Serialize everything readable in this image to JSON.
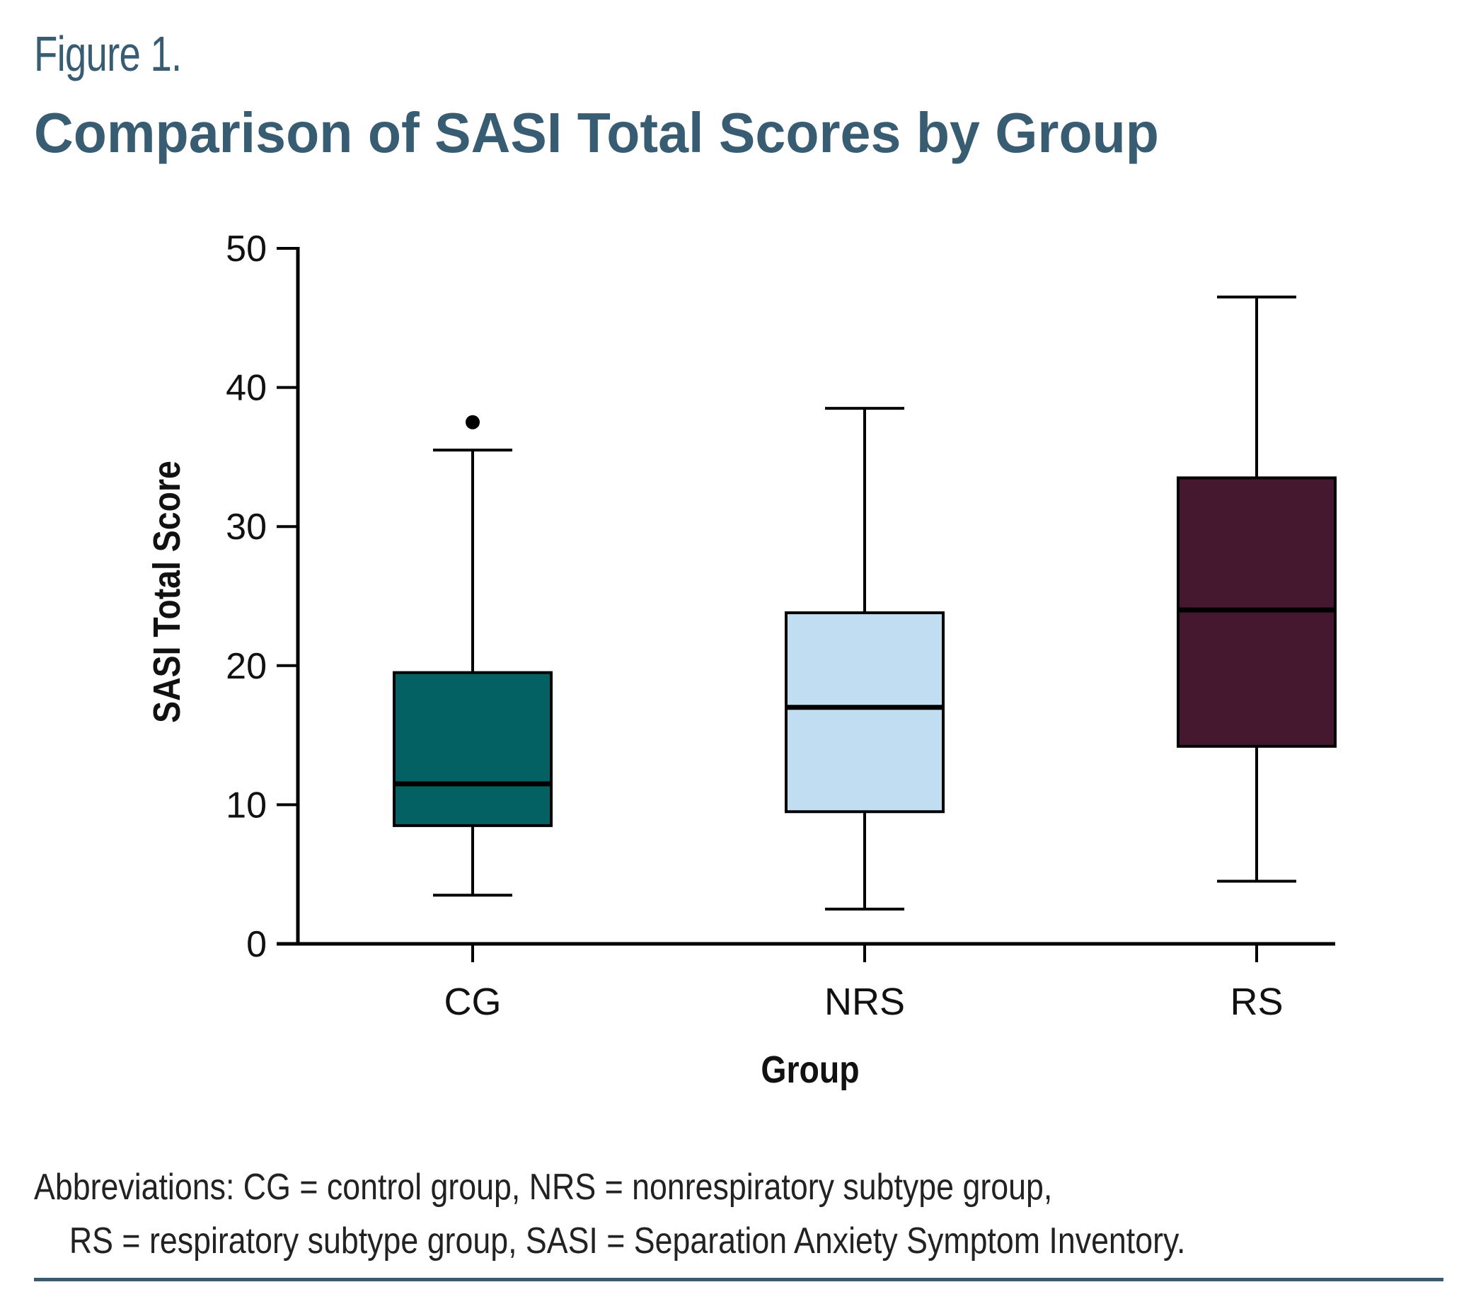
{
  "figure": {
    "label": "Figure 1.",
    "title": "Comparison of SASI Total Scores by Group",
    "caption_line1": "Abbreviations: CG = control group, NRS = nonrespiratory subtype group,",
    "caption_line2": "RS = respiratory subtype group, SASI = Separation Anxiety Symptom Inventory.",
    "accent_color": "#385c72"
  },
  "chart_data": {
    "type": "boxplot",
    "title": "Comparison of SASI Total Scores by Group",
    "xlabel": "Group",
    "ylabel": "SASI Total Score",
    "ylim": [
      0,
      50
    ],
    "yticks": [
      0,
      10,
      20,
      30,
      40,
      50
    ],
    "grid": false,
    "legend": "none",
    "categories": [
      "CG",
      "NRS",
      "RS"
    ],
    "series": [
      {
        "name": "CG",
        "whisker_low": 3.5,
        "q1": 8.5,
        "median": 11.5,
        "q3": 19.5,
        "whisker_high": 35.5,
        "outliers": [
          37.5
        ],
        "color": "#036063"
      },
      {
        "name": "NRS",
        "whisker_low": 2.5,
        "q1": 9.5,
        "median": 17.0,
        "q3": 23.8,
        "whisker_high": 38.5,
        "outliers": [],
        "color": "#c0ddf2"
      },
      {
        "name": "RS",
        "whisker_low": 4.5,
        "q1": 14.2,
        "median": 24.0,
        "q3": 33.5,
        "whisker_high": 46.5,
        "outliers": [],
        "color": "#461830"
      }
    ]
  }
}
